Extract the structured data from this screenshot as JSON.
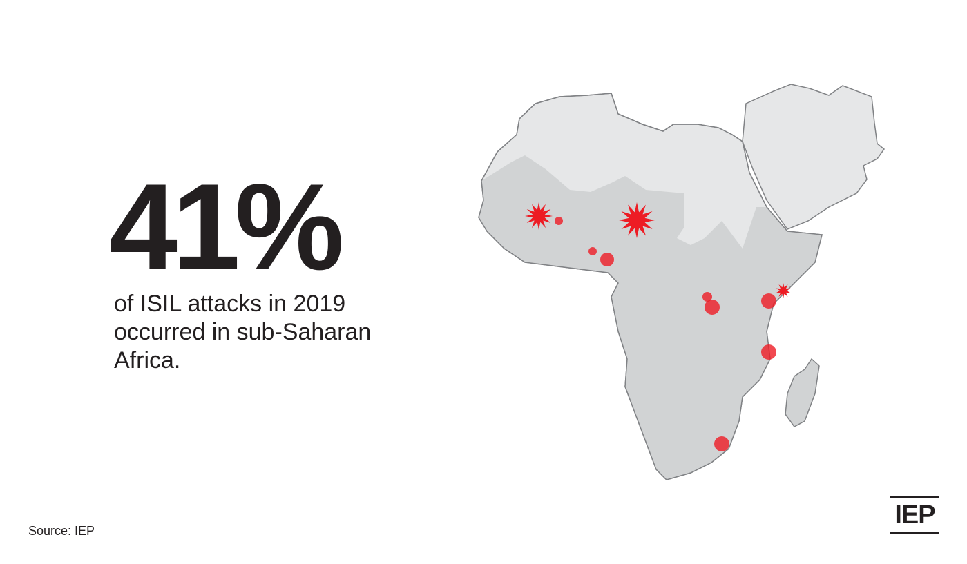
{
  "headline": "41%",
  "description": [
    "of ISIL attacks in 2019",
    "occurred in sub-Saharan",
    "Africa."
  ],
  "source": "Source: IEP",
  "logo": "IEP"
}
